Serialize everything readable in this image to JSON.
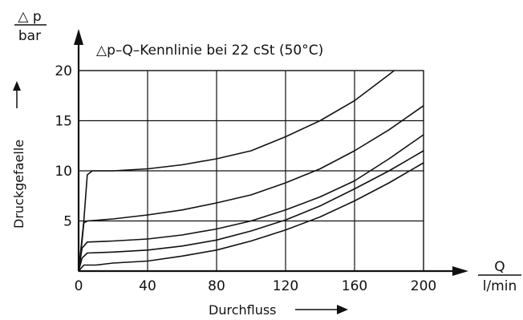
{
  "chart_data": {
    "type": "line",
    "title": "△p–Q–Kennlinie bei 22 cSt (50°C)",
    "ylabel": "Druckgefaelle",
    "ylabel_arrow": "→",
    "y_unit_top": "△ p",
    "y_unit_bottom": "bar",
    "xlabel": "Durchfluss",
    "xlabel_arrow": "→",
    "x_unit_top": "Q",
    "x_unit_bottom": "l/min",
    "xlim": [
      0,
      200
    ],
    "ylim": [
      0,
      20
    ],
    "x_ticks": [
      0,
      40,
      80,
      120,
      160,
      200
    ],
    "y_ticks": [
      5,
      10,
      15,
      20
    ],
    "grid": true,
    "legend": "none",
    "series": [
      {
        "points": [
          [
            0,
            0
          ],
          [
            3,
            5
          ],
          [
            5,
            9.6
          ],
          [
            8,
            10
          ],
          [
            20,
            10
          ],
          [
            40,
            10.2
          ],
          [
            60,
            10.6
          ],
          [
            80,
            11.2
          ],
          [
            100,
            12
          ],
          [
            120,
            13.4
          ],
          [
            140,
            15
          ],
          [
            160,
            17
          ],
          [
            180,
            19.6
          ],
          [
            183,
            20
          ]
        ]
      },
      {
        "points": [
          [
            0,
            0
          ],
          [
            2,
            3
          ],
          [
            3,
            4.8
          ],
          [
            5,
            5
          ],
          [
            20,
            5.2
          ],
          [
            40,
            5.6
          ],
          [
            60,
            6.1
          ],
          [
            80,
            6.8
          ],
          [
            100,
            7.6
          ],
          [
            120,
            8.8
          ],
          [
            140,
            10.2
          ],
          [
            160,
            12
          ],
          [
            180,
            14.1
          ],
          [
            200,
            16.5
          ]
        ]
      },
      {
        "points": [
          [
            0,
            0
          ],
          [
            2,
            2.3
          ],
          [
            5,
            2.9
          ],
          [
            20,
            3
          ],
          [
            40,
            3.2
          ],
          [
            60,
            3.6
          ],
          [
            80,
            4.2
          ],
          [
            100,
            5
          ],
          [
            120,
            6.1
          ],
          [
            140,
            7.4
          ],
          [
            160,
            9
          ],
          [
            180,
            11.2
          ],
          [
            200,
            13.6
          ]
        ]
      },
      {
        "points": [
          [
            0,
            0
          ],
          [
            2,
            1.3
          ],
          [
            5,
            1.8
          ],
          [
            20,
            1.9
          ],
          [
            40,
            2.1
          ],
          [
            60,
            2.5
          ],
          [
            80,
            3.1
          ],
          [
            100,
            4
          ],
          [
            120,
            5.1
          ],
          [
            140,
            6.5
          ],
          [
            160,
            8.2
          ],
          [
            180,
            10
          ],
          [
            200,
            12
          ]
        ]
      },
      {
        "points": [
          [
            0,
            0
          ],
          [
            3,
            0.6
          ],
          [
            10,
            0.6
          ],
          [
            20,
            0.8
          ],
          [
            40,
            1
          ],
          [
            60,
            1.5
          ],
          [
            80,
            2.1
          ],
          [
            100,
            3
          ],
          [
            120,
            4.1
          ],
          [
            140,
            5.4
          ],
          [
            160,
            7
          ],
          [
            180,
            8.8
          ],
          [
            200,
            10.8
          ]
        ]
      }
    ]
  }
}
